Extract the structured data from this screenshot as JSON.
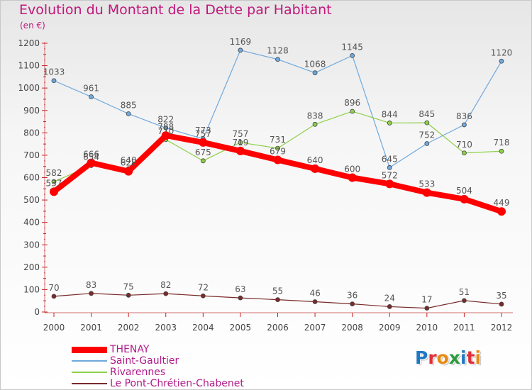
{
  "title": "Evolution du Montant de la Dette par Habitant",
  "unit": "(en €)",
  "brand": {
    "text": "Proxiti",
    "letter_colors": [
      "#1f78c4",
      "#e0303a",
      "#e88a12",
      "#2e9b3e",
      "#1f78c4",
      "#e0303a",
      "#e88a12"
    ]
  },
  "chart_data": {
    "type": "line",
    "x": [
      2000,
      2001,
      2002,
      2003,
      2004,
      2005,
      2006,
      2007,
      2008,
      2009,
      2010,
      2011,
      2012
    ],
    "ylim": [
      0,
      1200
    ],
    "yticks": [
      0,
      100,
      200,
      300,
      400,
      500,
      600,
      700,
      800,
      900,
      1000,
      1100,
      1200
    ],
    "grid": false,
    "legend_position": "bottom-left",
    "series": [
      {
        "name": "THENAY",
        "color": "#ff0000",
        "values": [
          537,
          666,
          628,
          788,
          757,
          719,
          679,
          640,
          600,
          572,
          533,
          504,
          449
        ]
      },
      {
        "name": "Saint-Gaultier",
        "color": "#6fa8dc",
        "values": [
          1033,
          961,
          885,
          822,
          773,
          1169,
          1128,
          1068,
          1145,
          645,
          752,
          836,
          1120
        ]
      },
      {
        "name": "Rivarennes",
        "color": "#8ed04a",
        "values": [
          582,
          654,
          640,
          770,
          675,
          757,
          731,
          838,
          896,
          844,
          845,
          710,
          718
        ]
      },
      {
        "name": "Le Pont-Chrétien-Chabenet",
        "color": "#7a2a2a",
        "values": [
          70,
          83,
          75,
          82,
          72,
          63,
          55,
          46,
          36,
          24,
          17,
          51,
          35
        ]
      }
    ]
  }
}
